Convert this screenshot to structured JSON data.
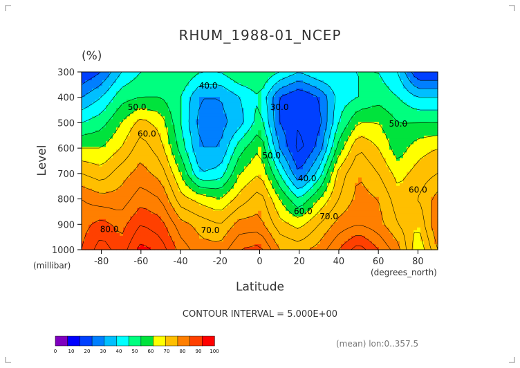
{
  "chart_data": {
    "type": "heatmap",
    "title": "RHUM_1988-01_NCEP",
    "units": "(%)",
    "xlabel": "Latitude",
    "xunits": "(degrees_north)",
    "ylabel": "Level",
    "yunits": "(millibar)",
    "xlim": [
      -90,
      90
    ],
    "ylim": [
      300,
      1000
    ],
    "xticks": [
      -80,
      -60,
      -40,
      -20,
      0,
      20,
      40,
      60,
      80
    ],
    "yticks": [
      300,
      400,
      500,
      600,
      700,
      800,
      900,
      1000
    ],
    "contour_interval_text": "CONTOUR INTERVAL = 5.000E+00",
    "footnote": "(mean) lon:0..357.5",
    "lat": [
      -90,
      -80,
      -70,
      -60,
      -50,
      -40,
      -30,
      -20,
      -10,
      0,
      10,
      20,
      30,
      40,
      50,
      60,
      70,
      80,
      90
    ],
    "levels": [
      300,
      400,
      500,
      600,
      700,
      800,
      900,
      1000
    ],
    "values": [
      [
        25,
        30,
        40,
        45,
        48,
        50,
        45,
        45,
        50,
        50,
        45,
        40,
        45,
        45,
        45,
        45,
        40,
        25,
        25
      ],
      [
        35,
        40,
        48,
        50,
        50,
        45,
        35,
        35,
        40,
        45,
        30,
        25,
        30,
        42,
        45,
        48,
        45,
        40,
        40
      ],
      [
        45,
        48,
        55,
        62,
        58,
        45,
        33,
        33,
        38,
        48,
        30,
        25,
        28,
        45,
        55,
        55,
        50,
        50,
        50
      ],
      [
        55,
        55,
        60,
        68,
        62,
        48,
        35,
        35,
        48,
        55,
        35,
        23,
        32,
        52,
        65,
        60,
        52,
        58,
        60
      ],
      [
        65,
        62,
        68,
        72,
        68,
        55,
        40,
        42,
        55,
        60,
        45,
        30,
        42,
        62,
        70,
        65,
        58,
        62,
        65
      ],
      [
        75,
        72,
        72,
        78,
        75,
        62,
        58,
        55,
        62,
        68,
        55,
        45,
        55,
        65,
        72,
        70,
        62,
        65,
        72
      ],
      [
        78,
        82,
        78,
        85,
        82,
        72,
        68,
        65,
        72,
        72,
        62,
        58,
        65,
        72,
        75,
        72,
        65,
        60,
        75
      ],
      [
        80,
        88,
        82,
        92,
        88,
        78,
        72,
        72,
        80,
        82,
        70,
        68,
        72,
        80,
        88,
        80,
        72,
        55,
        70
      ]
    ],
    "contour_labels": [
      {
        "text": "40.0",
        "lat": -26,
        "level": 365
      },
      {
        "text": "50.0",
        "lat": -62,
        "level": 450
      },
      {
        "text": "60.0",
        "lat": -57,
        "level": 555
      },
      {
        "text": "30.0",
        "lat": 10,
        "level": 450
      },
      {
        "text": "50.0",
        "lat": 6,
        "level": 640
      },
      {
        "text": "40.0",
        "lat": 24,
        "level": 730
      },
      {
        "text": "60.0",
        "lat": 22,
        "level": 860
      },
      {
        "text": "70.0",
        "lat": 35,
        "level": 880
      },
      {
        "text": "70.0",
        "lat": -25,
        "level": 935
      },
      {
        "text": "80.0",
        "lat": -76,
        "level": 930
      },
      {
        "text": "50.0",
        "lat": 70,
        "level": 515
      },
      {
        "text": "60.0",
        "lat": 80,
        "level": 775
      }
    ],
    "colorbar": {
      "labels": [
        "0",
        "10",
        "20",
        "30",
        "40",
        "50",
        "60",
        "70",
        "80",
        "90",
        "100"
      ],
      "colors": [
        "#7f00bf",
        "#0000ff",
        "#0040ff",
        "#007fff",
        "#00bfff",
        "#00ffff",
        "#00ff7f",
        "#00e33c",
        "#ffff00",
        "#ffbf00",
        "#ff7f00",
        "#ff4000",
        "#ff0000"
      ]
    },
    "grid": false
  }
}
